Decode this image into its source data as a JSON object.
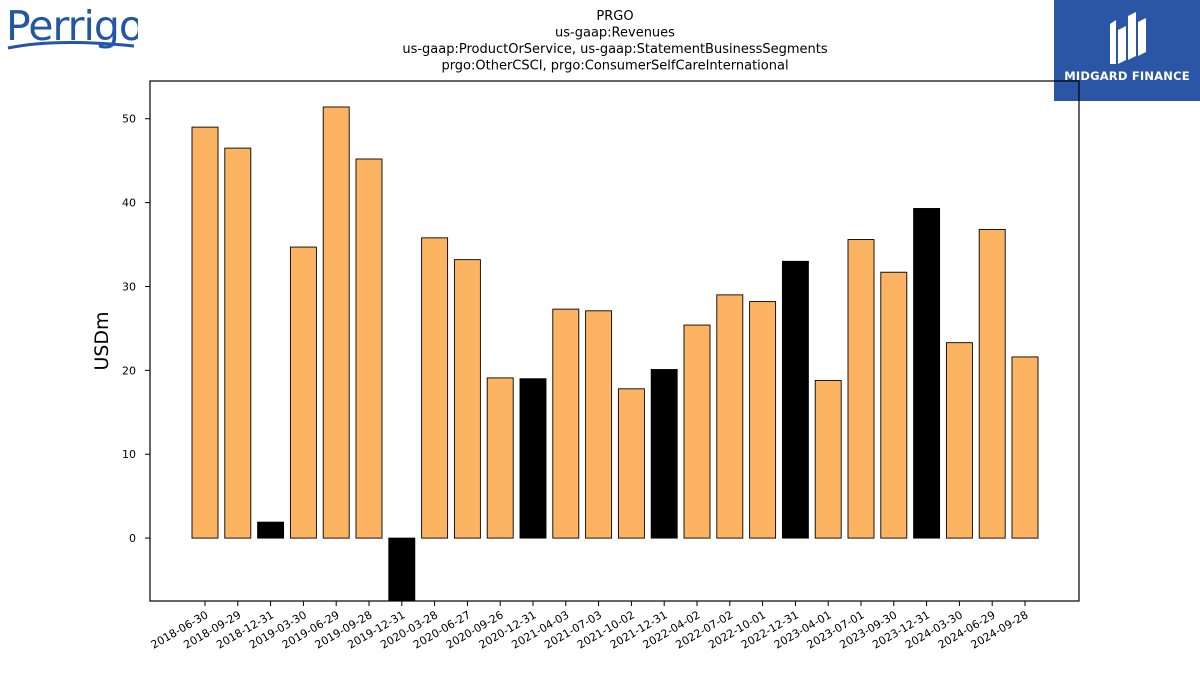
{
  "logos": {
    "left_text": "Perrigo",
    "right_text": "MIDGARD FINANCE"
  },
  "chart_data": {
    "type": "bar",
    "title_lines": [
      "PRGO",
      "us-gaap:Revenues",
      "us-gaap:ProductOrService, us-gaap:StatementBusinessSegments",
      "prgo:OtherCSCI, prgo:ConsumerSelfCareInternational"
    ],
    "ylabel": "USDm",
    "xlabel": "",
    "ylim": [
      -7.5,
      54.5
    ],
    "yticks": [
      0,
      10,
      20,
      30,
      40,
      50
    ],
    "grid": false,
    "colors": {
      "normal": "#fdb462",
      "highlight": "#000000",
      "edge": "#000000"
    },
    "categories": [
      "2018-06-30",
      "2018-09-29",
      "2018-12-31",
      "2019-03-30",
      "2019-06-29",
      "2019-09-28",
      "2019-12-31",
      "2020-03-28",
      "2020-06-27",
      "2020-09-26",
      "2020-12-31",
      "2021-04-03",
      "2021-07-03",
      "2021-10-02",
      "2021-12-31",
      "2022-04-02",
      "2022-07-02",
      "2022-10-01",
      "2022-12-31",
      "2023-04-01",
      "2023-07-01",
      "2023-09-30",
      "2023-12-31",
      "2024-03-30",
      "2024-06-29",
      "2024-09-28"
    ],
    "values": [
      49.0,
      46.5,
      1.9,
      34.7,
      51.4,
      45.2,
      -7.5,
      35.8,
      33.2,
      19.1,
      19.0,
      27.3,
      27.1,
      17.8,
      20.1,
      25.4,
      29.0,
      28.2,
      33.0,
      18.8,
      35.6,
      31.7,
      39.3,
      23.3,
      36.8,
      21.6
    ],
    "highlight": [
      false,
      false,
      true,
      false,
      false,
      false,
      true,
      false,
      false,
      false,
      true,
      false,
      false,
      false,
      true,
      false,
      false,
      false,
      true,
      false,
      false,
      false,
      true,
      false,
      false,
      false
    ]
  }
}
